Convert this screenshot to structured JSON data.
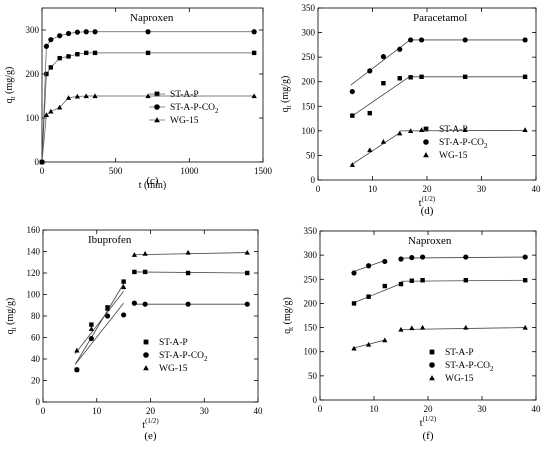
{
  "chart_data": [
    {
      "type": "scatter",
      "panel_label": "(c)",
      "title": "Naproxen",
      "xlabel": "t (min)",
      "ylabel_main": "q",
      "ylabel_sub": "t",
      "ylabel_unit": " (mg/g)",
      "xlim": [
        0,
        1500
      ],
      "ylim": [
        0,
        350
      ],
      "xticks": [
        0,
        500,
        1000,
        1500
      ],
      "yticks": [
        0,
        100,
        200,
        300
      ],
      "legend_position": "right",
      "series": [
        {
          "name": "ST-A-P",
          "marker": "square",
          "x": [
            0,
            30,
            60,
            120,
            180,
            240,
            300,
            360,
            720,
            1440
          ],
          "y": [
            0,
            200,
            215,
            236,
            240,
            245,
            248,
            248,
            248,
            248
          ]
        },
        {
          "name": "ST-A-P-CO",
          "name_sub": "2",
          "marker": "circle",
          "x": [
            0,
            30,
            60,
            120,
            180,
            240,
            300,
            360,
            720,
            1440
          ],
          "y": [
            0,
            263,
            278,
            287,
            292,
            295,
            296,
            296,
            296,
            296
          ]
        },
        {
          "name": "WG-15",
          "marker": "triangle",
          "x": [
            0,
            30,
            60,
            120,
            180,
            240,
            300,
            360,
            720,
            1440
          ],
          "y": [
            0,
            107,
            115,
            124,
            146,
            149,
            150,
            150,
            150,
            150
          ]
        }
      ]
    },
    {
      "type": "scatter",
      "panel_label": "(d)",
      "title": "Paracetamol",
      "xlabel": "t",
      "xlabel_sup": "(1/2)",
      "ylabel_main": "q",
      "ylabel_sub": "t",
      "ylabel_unit": " (mg/g)",
      "xlim": [
        0,
        40
      ],
      "ylim": [
        0,
        350
      ],
      "xticks": [
        0,
        10,
        20,
        30,
        40
      ],
      "yticks": [
        0,
        50,
        100,
        150,
        200,
        250,
        300,
        350
      ],
      "legend_position": "bottom-right",
      "series": [
        {
          "name": "ST-A-P",
          "marker": "square",
          "x": [
            6.3,
            9.5,
            12,
            15,
            17,
            19,
            27,
            38
          ],
          "y": [
            131,
            136,
            197,
            207,
            209,
            210,
            210,
            210
          ],
          "fit": [
            [
              [
                6,
                128
              ],
              [
                17,
                212
              ]
            ],
            [
              [
                17,
                210
              ],
              [
                38,
                210
              ]
            ]
          ]
        },
        {
          "name": "ST-A-P-CO",
          "name_sub": "2",
          "marker": "circle",
          "x": [
            6.3,
            9.5,
            12,
            15,
            17,
            19,
            27,
            38
          ],
          "y": [
            180,
            222,
            251,
            266,
            285,
            285,
            285,
            285
          ],
          "fit": [
            [
              [
                6,
                193
              ],
              [
                17,
                286
              ]
            ],
            [
              [
                17,
                285
              ],
              [
                38,
                285
              ]
            ]
          ]
        },
        {
          "name": "WG-15",
          "marker": "triangle",
          "x": [
            6.3,
            9.5,
            12,
            15,
            17,
            19,
            27,
            38
          ],
          "y": [
            31,
            61,
            78,
            95,
            100,
            102,
            102,
            102
          ],
          "fit": [
            [
              [
                6,
                30
              ],
              [
                15,
                96
              ]
            ],
            [
              [
                15,
                100
              ],
              [
                38,
                101
              ]
            ]
          ]
        }
      ]
    },
    {
      "type": "scatter",
      "panel_label": "(e)",
      "title": "Ibuprofen",
      "xlabel": "t",
      "xlabel_sup": "(1/2)",
      "ylabel_main": "q",
      "ylabel_sub": "t",
      "ylabel_unit": " (mg/g)",
      "xlim": [
        0,
        40
      ],
      "ylim": [
        0,
        160
      ],
      "xticks": [
        0,
        10,
        20,
        30,
        40
      ],
      "xtick_labels": [
        "0",
        "10",
        "20",
        "30",
        "40"
      ],
      "yticks": [
        0,
        20,
        40,
        60,
        80,
        100,
        120,
        140,
        160
      ],
      "legend_position": "bottom-right",
      "series": [
        {
          "name": "ST-A-P",
          "marker": "square",
          "x": [
            6.3,
            9,
            12,
            15,
            17,
            19,
            27,
            38
          ],
          "y": [
            30,
            72,
            88,
            112,
            121,
            121,
            120,
            120
          ],
          "fit": [
            [
              [
                6,
                35
              ],
              [
                15,
                110
              ]
            ],
            [
              [
                17,
                121
              ],
              [
                38,
                120
              ]
            ]
          ]
        },
        {
          "name": "ST-A-P-CO",
          "name_sub": "2",
          "marker": "circle",
          "x": [
            6.3,
            9,
            12,
            15,
            17,
            19,
            27,
            38
          ],
          "y": [
            30,
            59,
            80,
            81,
            92,
            91,
            91,
            91
          ],
          "fit": [
            [
              [
                6,
                35
              ],
              [
                15,
                92
              ]
            ],
            [
              [
                17,
                91
              ],
              [
                38,
                91
              ]
            ]
          ]
        },
        {
          "name": "WG-15",
          "marker": "triangle",
          "x": [
            6.3,
            9,
            12,
            15,
            17,
            19,
            27,
            38
          ],
          "y": [
            48,
            68,
            87,
            107,
            137,
            138,
            139,
            139
          ],
          "fit": [
            [
              [
                6,
                45
              ],
              [
                15,
                103
              ]
            ],
            [
              [
                17,
                137
              ],
              [
                38,
                139
              ]
            ]
          ]
        }
      ]
    },
    {
      "type": "scatter",
      "panel_label": "(f)",
      "title": "Naproxen",
      "xlabel": "t",
      "xlabel_sup": "(1/2)",
      "ylabel_main": "q",
      "ylabel_sub": "t",
      "ylabel_unit": " (mg/g)",
      "xlim": [
        0,
        40
      ],
      "ylim": [
        0,
        350
      ],
      "xticks": [
        0,
        10,
        20,
        30,
        40
      ],
      "yticks": [
        0,
        50,
        100,
        150,
        200,
        250,
        300,
        350
      ],
      "legend_position": "bottom-right",
      "series": [
        {
          "name": "ST-A-P",
          "marker": "square",
          "x": [
            6.3,
            9,
            12,
            15,
            17,
            19,
            27,
            38
          ],
          "y": [
            200,
            214,
            236,
            240,
            247,
            248,
            248,
            248
          ],
          "fit": [
            [
              [
                6,
                200
              ],
              [
                15,
                241
              ]
            ],
            [
              [
                15,
                246
              ],
              [
                38,
                248
              ]
            ]
          ]
        },
        {
          "name": "ST-A-P-CO",
          "name_sub": "2",
          "marker": "circle",
          "x": [
            6.3,
            9,
            12,
            15,
            17,
            19,
            27,
            38
          ],
          "y": [
            263,
            278,
            287,
            292,
            295,
            296,
            296,
            296
          ],
          "fit": [
            [
              [
                6,
                265
              ],
              [
                12,
                289
              ]
            ],
            [
              [
                15,
                294
              ],
              [
                38,
                296
              ]
            ]
          ]
        },
        {
          "name": "WG-15",
          "marker": "triangle",
          "x": [
            6.3,
            9,
            12,
            15,
            17,
            19,
            27,
            38
          ],
          "y": [
            107,
            115,
            124,
            146,
            149,
            150,
            150,
            150
          ],
          "fit": [
            [
              [
                6,
                107
              ],
              [
                12,
                124
              ]
            ],
            [
              [
                15,
                146
              ],
              [
                38,
                150
              ]
            ]
          ]
        }
      ]
    }
  ]
}
